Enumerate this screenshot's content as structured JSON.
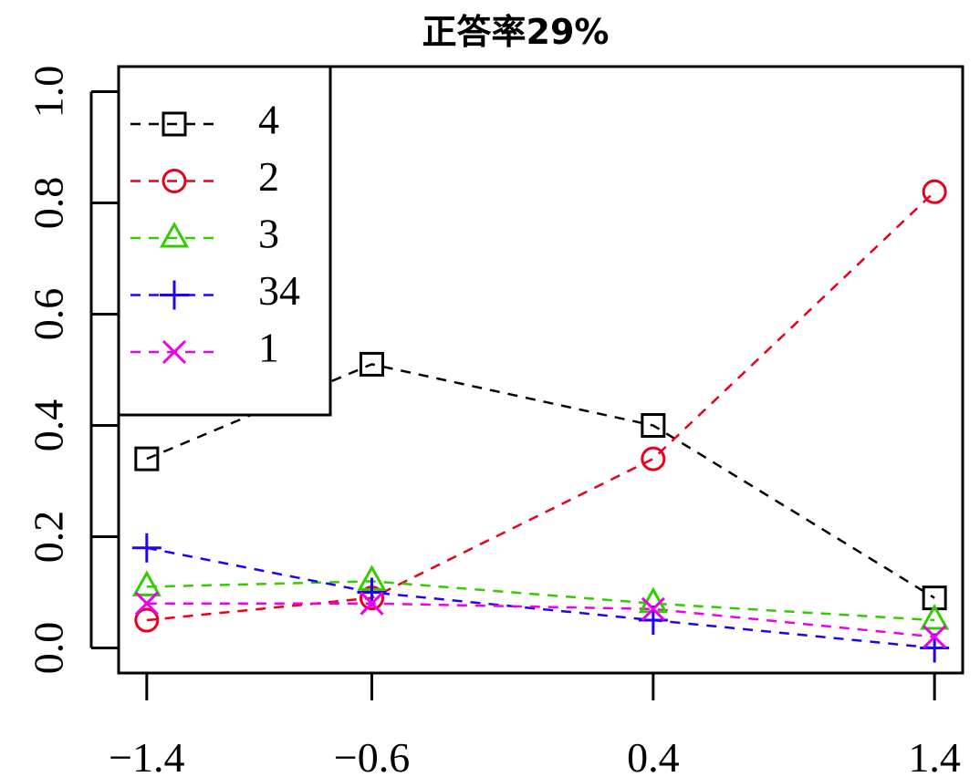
{
  "chart_data": {
    "type": "line",
    "title": "正答率29%",
    "xlabel": "",
    "ylabel": "",
    "x": [
      -1.4,
      -0.6,
      0.4,
      1.4
    ],
    "x_tick_labels": [
      "−1.4",
      "−0.6",
      "0.4",
      "1.4"
    ],
    "y_ticks": [
      0.0,
      0.2,
      0.4,
      0.6,
      0.8,
      1.0
    ],
    "y_tick_labels": [
      "0.0",
      "0.2",
      "0.4",
      "0.6",
      "0.8",
      "1.0"
    ],
    "xlim": [
      -1.5,
      1.5
    ],
    "ylim": [
      -0.045,
      1.045
    ],
    "grid": false,
    "legend_position": "top-left",
    "series": [
      {
        "name": "4",
        "color": "#000000",
        "marker": "square",
        "values": [
          0.34,
          0.51,
          0.4,
          0.09
        ]
      },
      {
        "name": "2",
        "color": "#e8001c",
        "marker": "circle",
        "values": [
          0.05,
          0.09,
          0.34,
          0.82
        ]
      },
      {
        "name": "3",
        "color": "#33cc00",
        "marker": "triangle",
        "values": [
          0.11,
          0.12,
          0.08,
          0.05
        ]
      },
      {
        "name": "34",
        "color": "#2200ff",
        "marker": "plus",
        "values": [
          0.18,
          0.1,
          0.05,
          0.0
        ]
      },
      {
        "name": "1",
        "color": "#ee00ee",
        "marker": "cross",
        "values": [
          0.08,
          0.08,
          0.07,
          0.02
        ]
      }
    ]
  }
}
